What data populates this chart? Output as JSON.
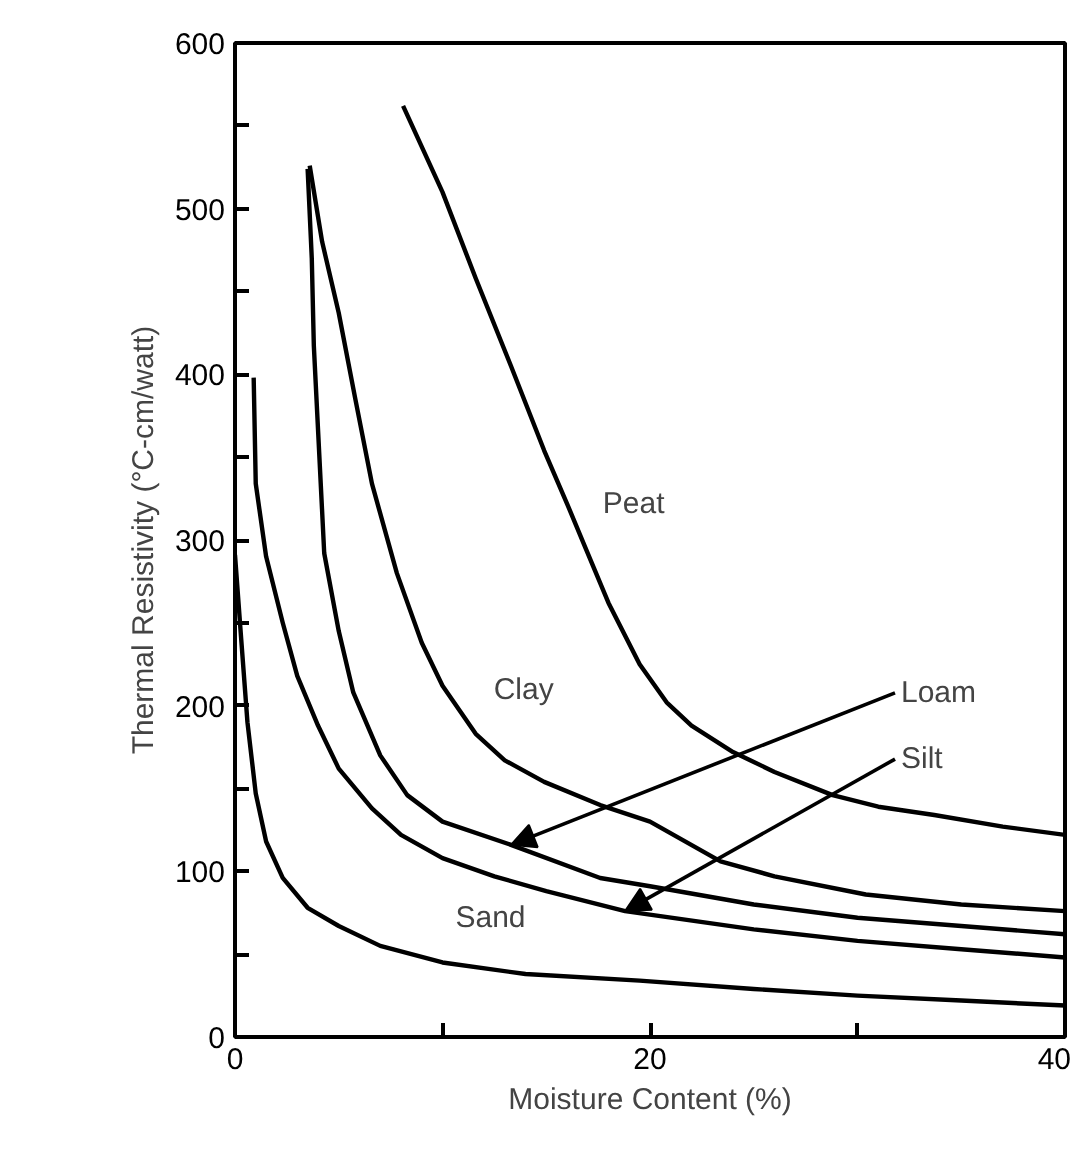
{
  "chart_data": {
    "type": "line",
    "xlabel": "Moisture Content (%)",
    "ylabel": "Thermal Resistivity (°C-cm/watt)",
    "xlim": [
      0,
      40
    ],
    "xticks": [
      0,
      {
        "value": 10,
        "label": null
      },
      20,
      {
        "value": 30,
        "label": null
      },
      40
    ],
    "ylim": [
      0,
      600
    ],
    "yticks": [
      0,
      {
        "value": 50,
        "label": null
      },
      100,
      {
        "value": 150,
        "label": null
      },
      200,
      {
        "value": 250,
        "label": null
      },
      300,
      {
        "value": 350,
        "label": null
      },
      400,
      {
        "value": 450,
        "label": null
      },
      500,
      {
        "value": 550,
        "label": null
      },
      600
    ],
    "grid": false,
    "marker": "none",
    "line_style": "solid",
    "series": [
      {
        "color": "#000000",
        "x": [
          0,
          0.3,
          0.6,
          1,
          1.5,
          2.3,
          3.5,
          5,
          7,
          10,
          14,
          19.5,
          25,
          30,
          35,
          40
        ],
        "values": [
          291,
          240,
          190,
          147,
          118,
          96,
          78,
          67,
          55,
          45,
          38,
          34,
          29,
          25,
          22,
          19
        ]
      },
      {
        "color": "#000000",
        "x": [
          0.9,
          1,
          1.5,
          2.3,
          3,
          4,
          5,
          6.6,
          8,
          10,
          12.5,
          15,
          18.8,
          25,
          30,
          35,
          40
        ],
        "values": [
          398,
          334,
          290,
          250,
          218,
          188,
          162,
          138,
          122,
          108,
          97,
          88,
          76,
          65,
          58,
          53,
          48
        ]
      },
      {
        "color": "#000000",
        "x": [
          3.5,
          3.7,
          3.8,
          4.3,
          5,
          5.7,
          7,
          8.3,
          10,
          13.3,
          17.6,
          20,
          25,
          30,
          35,
          40
        ],
        "values": [
          524,
          470,
          417,
          292,
          245,
          208,
          170,
          146,
          130,
          116,
          96,
          91,
          80,
          72,
          67,
          62
        ]
      },
      {
        "color": "#000000",
        "x": [
          3.6,
          4.2,
          5,
          5.8,
          6.6,
          7.8,
          9,
          10,
          11.6,
          13,
          14.9,
          17.6,
          20,
          23.4,
          26,
          30.4,
          35,
          40
        ],
        "values": [
          526,
          480,
          437,
          385,
          334,
          280,
          238,
          212,
          183,
          167,
          154,
          140,
          130,
          106,
          97,
          86,
          80,
          76
        ]
      },
      {
        "color": "#000000",
        "x": [
          8.1,
          10,
          11.6,
          13.3,
          14.9,
          16,
          16.9,
          18,
          19.5,
          20.8,
          22,
          24,
          26,
          28.8,
          31,
          33.7,
          37,
          40
        ],
        "values": [
          562,
          510,
          458,
          405,
          354,
          322,
          295,
          262,
          225,
          202,
          188,
          172,
          160,
          146,
          139,
          134,
          127,
          122
        ]
      }
    ],
    "annotations": [
      {
        "text": "Peat",
        "x": 16.9,
        "y": 295
      },
      {
        "text": "Clay",
        "x": 11.6,
        "y": 183
      },
      {
        "text": "Loam",
        "x": 13.3,
        "y": 116
      },
      {
        "text": "Silt",
        "x": 18.8,
        "y": 76
      },
      {
        "text": "Sand",
        "x": 10,
        "y": 45
      }
    ]
  }
}
